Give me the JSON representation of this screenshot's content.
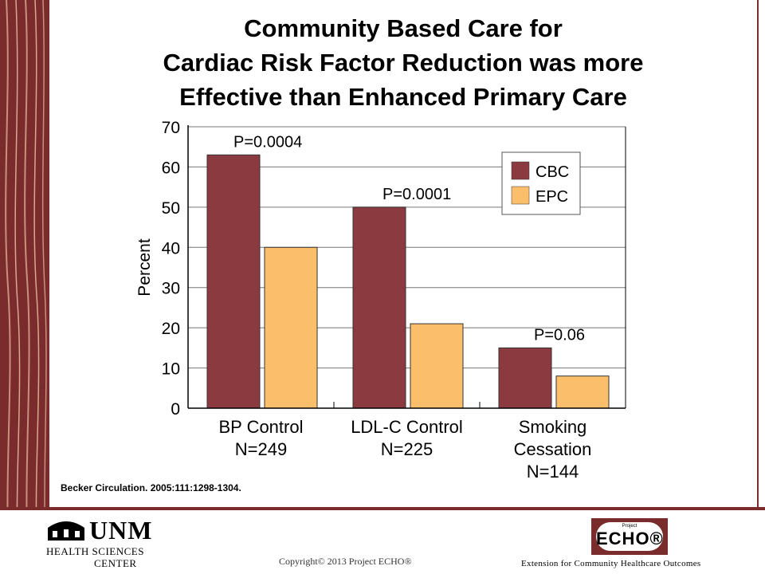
{
  "slide": {
    "title_lines": [
      "Community Based Care for",
      "Cardiac Risk Factor Reduction was more",
      "Effective than Enhanced Primary Care"
    ],
    "citation": "Becker Circulation.  2005:111:1298-1304."
  },
  "footer": {
    "unm": "UNM",
    "hsc_line1": "HEALTH SCIENCES",
    "hsc_line2": "CENTER",
    "copyright": "Copyright© 2013 Project ECHO®",
    "echo_project": "Project",
    "echo_word": "ECHO®",
    "echo_tagline": "Extension for Community Healthcare Outcomes"
  },
  "chart_data": {
    "type": "bar",
    "categories": [
      [
        "BP Control",
        "N=249"
      ],
      [
        "LDL-C Control",
        "N=225"
      ],
      [
        "Smoking",
        "Cessation",
        "N=144"
      ]
    ],
    "series": [
      {
        "name": "CBC",
        "values": [
          63,
          50,
          15
        ],
        "color": "#8b3a3f"
      },
      {
        "name": "EPC",
        "values": [
          40,
          21,
          8
        ],
        "color": "#fbbf6b"
      }
    ],
    "annotations": [
      "P=0.0004",
      "P=0.0001",
      "P=0.06"
    ],
    "ylabel": "Percent",
    "ylim": [
      0,
      70
    ],
    "yticks": [
      0,
      10,
      20,
      30,
      40,
      50,
      60,
      70
    ],
    "grid": true,
    "legend": "top-right"
  }
}
